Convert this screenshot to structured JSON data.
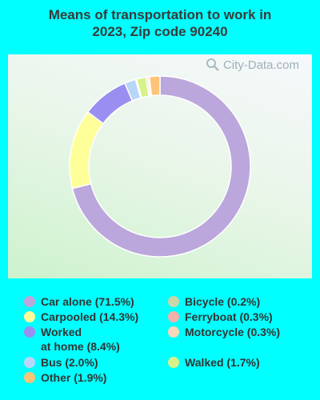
{
  "title_line1": "Means of transportation to work in",
  "title_line2": "2023, Zip code 90240",
  "watermark": "City-Data.com",
  "chart_data": {
    "type": "pie",
    "variant": "donut",
    "title": "Means of transportation to work in 2023, Zip code 90240",
    "slices": [
      {
        "label": "Car alone",
        "value": 71.5,
        "color": "#bba7db",
        "legend": "Car alone (71.5%)"
      },
      {
        "label": "Carpooled",
        "value": 14.3,
        "color": "#ffff99",
        "legend": "Carpooled (14.3%)"
      },
      {
        "label": "Worked at home",
        "value": 8.4,
        "color": "#9a8ef0",
        "legend_line1": "Worked",
        "legend_line2": "at home (8.4%)"
      },
      {
        "label": "Bus",
        "value": 2.0,
        "color": "#b9d6f8",
        "legend": "Bus (2.0%)"
      },
      {
        "label": "Bicycle",
        "value": 0.2,
        "color": "#c8d6a8",
        "legend": "Bicycle (0.2%)"
      },
      {
        "label": "Walked",
        "value": 1.7,
        "color": "#d8f28a",
        "legend": "Walked (1.7%)"
      },
      {
        "label": "Ferryboat",
        "value": 0.3,
        "color": "#f2b0a8",
        "legend": "Ferryboat (0.3%)"
      },
      {
        "label": "Motorcycle",
        "value": 0.3,
        "color": "#fcd6b8",
        "legend": "Motorcycle (0.3%)"
      },
      {
        "label": "Other",
        "value": 1.9,
        "color": "#fcc477",
        "legend": "Other (1.9%)"
      }
    ]
  }
}
